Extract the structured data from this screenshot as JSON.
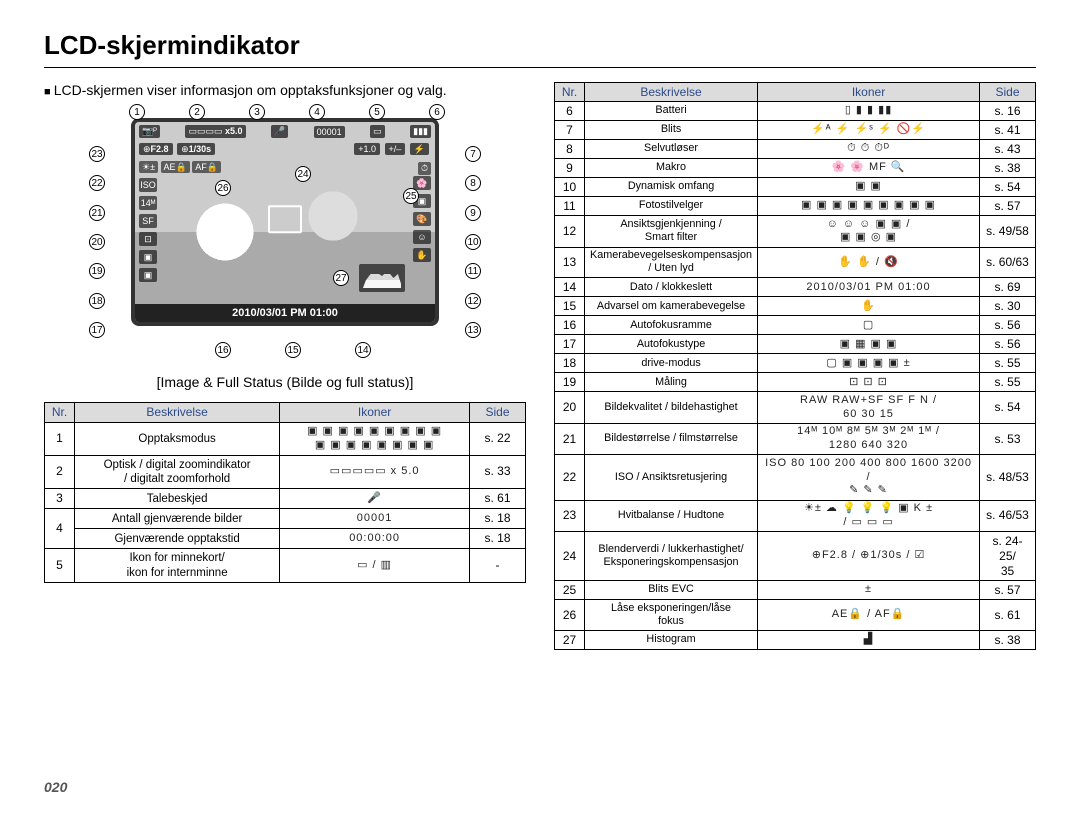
{
  "title": "LCD-skjermindikator",
  "intro": "LCD-skjermen viser informasjon om opptaksfunksjoner og valg.",
  "lcd": {
    "zoom": "x5.0",
    "counter": "00001",
    "aperture": "F2.8",
    "shutter": "1/30s",
    "ev": "+1.0",
    "ae_lock": "AE🔒",
    "af_lock": "AF🔒",
    "flash_ev_label": "+/–",
    "flash_icon": "⚡",
    "datetime": "2010/03/01  PM  01:00"
  },
  "caption": "[Image & Full Status (Bilde og full status)]",
  "left_headers": {
    "nr": "Nr.",
    "desc": "Beskrivelse",
    "icons": "Ikoner",
    "side": "Side"
  },
  "left_rows": [
    {
      "nr": "1",
      "desc": "Opptaksmodus",
      "icons": "▣ ▣ ▣ ▣ ▣ ▣ ▣ ▣ ▣\n▣ ▣ ▣ ▣ ▣ ▣ ▣ ▣",
      "side": "s. 22"
    },
    {
      "nr": "2",
      "desc": "Optisk / digital zoomindikator\n/ digitalt zoomforhold",
      "icons": "▭▭▭▭▭  x 5.0",
      "side": "s. 33"
    },
    {
      "nr": "3",
      "desc": "Talebeskjed",
      "icons": "🎤",
      "side": "s. 61"
    },
    {
      "nr": "4",
      "desc": "Antall gjenværende bilder",
      "icons": "00001",
      "side": "s. 18",
      "merge_below": true
    },
    {
      "nr": "",
      "desc": "Gjenværende opptakstid",
      "icons": "00:00:00",
      "side": "s. 18"
    },
    {
      "nr": "5",
      "desc": "Ikon for minnekort/\nikon for internminne",
      "icons": "▭ / ▥",
      "side": "-"
    }
  ],
  "right_headers": {
    "nr": "Nr.",
    "desc": "Beskrivelse",
    "icons": "Ikoner",
    "side": "Side"
  },
  "right_rows": [
    {
      "nr": "6",
      "desc": "Batteri",
      "icons": "▯ ▮ ▮ ▮▮",
      "side": "s. 16"
    },
    {
      "nr": "7",
      "desc": "Blits",
      "icons": "⚡ᴬ ⚡ ⚡ˢ ⚡ 🚫⚡",
      "side": "s. 41"
    },
    {
      "nr": "8",
      "desc": "Selvutløser",
      "icons": "⏱ ⏱ ⏱ᴰ",
      "side": "s. 43"
    },
    {
      "nr": "9",
      "desc": "Makro",
      "icons": "🌸 🌸 MF 🔍",
      "side": "s. 38"
    },
    {
      "nr": "10",
      "desc": "Dynamisk omfang",
      "icons": "▣ ▣",
      "side": "s. 54"
    },
    {
      "nr": "11",
      "desc": "Fotostilvelger",
      "icons": "▣ ▣ ▣ ▣ ▣ ▣ ▣ ▣ ▣",
      "side": "s. 57"
    },
    {
      "nr": "12",
      "desc": "Ansiktsgjenkjenning /\nSmart filter",
      "icons": "☺ ☺ ☺ ▣ ▣ /\n▣ ▣ ◎ ▣",
      "side": "s. 49/58"
    },
    {
      "nr": "13",
      "desc": "Kamerabevegelseskompensasjon\n/ Uten lyd",
      "icons": "✋ ✋ / 🔇",
      "side": "s. 60/63"
    },
    {
      "nr": "14",
      "desc": "Dato / klokkeslett",
      "icons": "2010/03/01 PM 01:00",
      "side": "s. 69"
    },
    {
      "nr": "15",
      "desc": "Advarsel om kamerabevegelse",
      "icons": "✋",
      "side": "s. 30"
    },
    {
      "nr": "16",
      "desc": "Autofokusramme",
      "icons": "▢",
      "side": "s. 56"
    },
    {
      "nr": "17",
      "desc": "Autofokustype",
      "icons": "▣ ▦ ▣ ▣",
      "side": "s. 56"
    },
    {
      "nr": "18",
      "desc": "drive-modus",
      "icons": "▢ ▣ ▣ ▣ ▣ ±",
      "side": "s. 55"
    },
    {
      "nr": "19",
      "desc": "Måling",
      "icons": "⊡ ⊡ ⊡",
      "side": "s. 55"
    },
    {
      "nr": "20",
      "desc": "Bildekvalitet / bildehastighet",
      "icons": "RAW RAW+SF SF F N /\n60 30 15",
      "side": "s. 54"
    },
    {
      "nr": "21",
      "desc": "Bildestørrelse / filmstørrelse",
      "icons": "14ᴹ 10ᴹ 8ᴹ 5ᴹ 3ᴹ 2ᴹ 1ᴹ /\n1280 640 320",
      "side": "s. 53"
    },
    {
      "nr": "22",
      "desc": "ISO / Ansiktsretusjering",
      "icons": "ISO 80 100 200 400 800 1600 3200 /\n✎ ✎ ✎",
      "side": "s. 48/53"
    },
    {
      "nr": "23",
      "desc": "Hvitbalanse / Hudtone",
      "icons": "☀± ☁ 💡 💡 💡 ▣ K ±\n/ ▭ ▭ ▭",
      "side": "s. 46/53"
    },
    {
      "nr": "24",
      "desc": "Blenderverdi / lukkerhastighet/\nEksponeringskompensasjon",
      "icons": "⊕F2.8 / ⊕1/30s / ☑",
      "side": "s. 24-25/\n35"
    },
    {
      "nr": "25",
      "desc": "Blits EVC",
      "icons": "±",
      "side": "s. 57"
    },
    {
      "nr": "26",
      "desc": "Låse eksponeringen/låse\nfokus",
      "icons": "AE🔒 / AF🔒",
      "side": "s. 61"
    },
    {
      "nr": "27",
      "desc": "Histogram",
      "icons": "▟",
      "side": "s. 38"
    }
  ],
  "page_number": "020",
  "callouts_top": [
    "1",
    "2",
    "3",
    "4",
    "5",
    "6"
  ],
  "callouts_right": [
    "7",
    "8",
    "9",
    "10",
    "11",
    "12",
    "13"
  ],
  "callouts_bottom": [
    "16",
    "15",
    "14"
  ],
  "callouts_left": [
    "23",
    "22",
    "21",
    "20",
    "19",
    "18",
    "17"
  ],
  "callouts_inner": [
    "24",
    "25",
    "26",
    "27"
  ]
}
